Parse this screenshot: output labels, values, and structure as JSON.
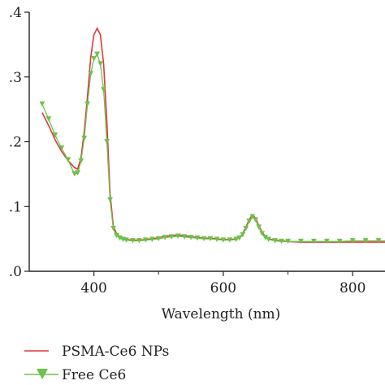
{
  "chart_data": {
    "type": "line",
    "title": "",
    "xlabel": "Wavelength (nm)",
    "ylabel": "",
    "xlim": [
      300,
      850
    ],
    "ylim": [
      0.0,
      0.4
    ],
    "xticks": [
      400,
      600,
      800
    ],
    "xtick_labels": [
      "400",
      "600",
      "800"
    ],
    "yticks": [
      0.0,
      0.1,
      0.2,
      0.3,
      0.4
    ],
    "ytick_labels": [
      ".0",
      ".1",
      ".2",
      ".3",
      ".4"
    ],
    "grid": false,
    "legend_position": "bottom-left",
    "series": [
      {
        "name": "PSMA-Ce6 NPs",
        "color": "#e0383c",
        "marker": "none",
        "x": [
          320,
          330,
          340,
          350,
          360,
          370,
          375,
          380,
          385,
          390,
          395,
          400,
          405,
          410,
          415,
          420,
          425,
          430,
          435,
          440,
          445,
          450,
          460,
          470,
          480,
          490,
          500,
          510,
          520,
          530,
          540,
          550,
          560,
          570,
          580,
          590,
          600,
          610,
          620,
          625,
          630,
          635,
          640,
          645,
          650,
          655,
          660,
          665,
          670,
          680,
          690,
          700,
          720,
          740,
          760,
          780,
          800,
          820,
          840,
          850
        ],
        "y": [
          0.245,
          0.225,
          0.203,
          0.185,
          0.171,
          0.16,
          0.158,
          0.175,
          0.215,
          0.27,
          0.33,
          0.365,
          0.375,
          0.365,
          0.32,
          0.23,
          0.12,
          0.07,
          0.058,
          0.053,
          0.05,
          0.049,
          0.048,
          0.048,
          0.049,
          0.05,
          0.052,
          0.054,
          0.055,
          0.056,
          0.055,
          0.053,
          0.052,
          0.051,
          0.051,
          0.05,
          0.049,
          0.049,
          0.05,
          0.052,
          0.058,
          0.068,
          0.08,
          0.087,
          0.082,
          0.07,
          0.06,
          0.054,
          0.05,
          0.048,
          0.047,
          0.046,
          0.045,
          0.045,
          0.045,
          0.045,
          0.045,
          0.045,
          0.045,
          0.045
        ]
      },
      {
        "name": "Free Ce6",
        "color": "#6cc24a",
        "marker": "triangle-down",
        "x": [
          320,
          330,
          340,
          350,
          360,
          370,
          375,
          380,
          385,
          390,
          395,
          400,
          405,
          410,
          415,
          420,
          425,
          430,
          435,
          440,
          445,
          450,
          460,
          470,
          480,
          490,
          500,
          510,
          520,
          530,
          540,
          550,
          560,
          570,
          580,
          590,
          600,
          610,
          620,
          625,
          630,
          635,
          640,
          645,
          650,
          655,
          660,
          665,
          670,
          680,
          690,
          700,
          720,
          740,
          760,
          780,
          800,
          820,
          840,
          850
        ],
        "y": [
          0.258,
          0.235,
          0.21,
          0.19,
          0.172,
          0.15,
          0.152,
          0.17,
          0.205,
          0.258,
          0.305,
          0.328,
          0.335,
          0.32,
          0.28,
          0.2,
          0.11,
          0.066,
          0.055,
          0.051,
          0.049,
          0.048,
          0.047,
          0.047,
          0.048,
          0.049,
          0.05,
          0.052,
          0.053,
          0.054,
          0.053,
          0.052,
          0.051,
          0.05,
          0.05,
          0.049,
          0.048,
          0.048,
          0.049,
          0.051,
          0.056,
          0.066,
          0.077,
          0.084,
          0.079,
          0.068,
          0.058,
          0.052,
          0.049,
          0.047,
          0.046,
          0.046,
          0.046,
          0.046,
          0.046,
          0.046,
          0.047,
          0.047,
          0.047,
          0.047
        ]
      }
    ]
  }
}
